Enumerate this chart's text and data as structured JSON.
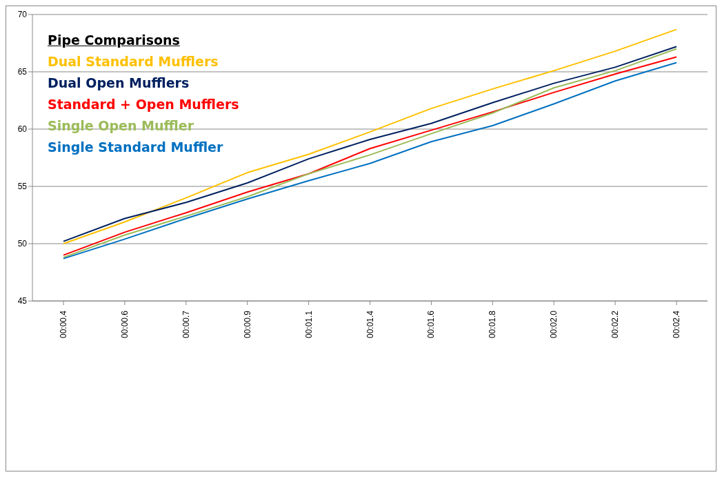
{
  "chart_data": {
    "type": "line",
    "legend_title": "Pipe Comparisons",
    "categories": [
      "00:00.4",
      "00:00.6",
      "00:00.7",
      "00:00.9",
      "00:01.1",
      "00:01.4",
      "00:01.6",
      "00:01.8",
      "00:02.0",
      "00:02.2",
      "00:02.4"
    ],
    "series": [
      {
        "name": "Dual Standard Mufflers",
        "color": "#ffc000",
        "values": [
          50.0,
          51.9,
          54.0,
          56.2,
          57.8,
          59.75,
          61.8,
          63.5,
          65.1,
          66.8,
          68.7
        ]
      },
      {
        "name": "Dual Open Mufflers",
        "color": "#002060",
        "values": [
          50.2,
          52.2,
          53.6,
          55.3,
          57.4,
          59.1,
          60.5,
          62.3,
          64.0,
          65.4,
          67.2
        ]
      },
      {
        "name": "Standard + Open Mufflers",
        "color": "#ff0000",
        "values": [
          49.0,
          51.0,
          52.7,
          54.5,
          56.1,
          58.3,
          59.9,
          61.5,
          63.2,
          64.8,
          66.3
        ]
      },
      {
        "name": "Single Open Muffler",
        "color": "#9bbb59",
        "values": [
          48.8,
          50.75,
          52.4,
          54.1,
          56.1,
          57.75,
          59.6,
          61.4,
          63.6,
          65.1,
          67.0
        ]
      },
      {
        "name": "Single Standard Muffler",
        "color": "#0070c0",
        "values": [
          48.7,
          50.4,
          52.2,
          53.9,
          55.5,
          57.0,
          58.9,
          60.3,
          62.2,
          64.2,
          65.8
        ]
      }
    ],
    "ylim": [
      45,
      70
    ],
    "yticks": [
      45,
      50,
      55,
      60,
      65,
      70
    ],
    "grid": "y",
    "legend": "top left",
    "marker": "none",
    "line_style": "solid"
  }
}
